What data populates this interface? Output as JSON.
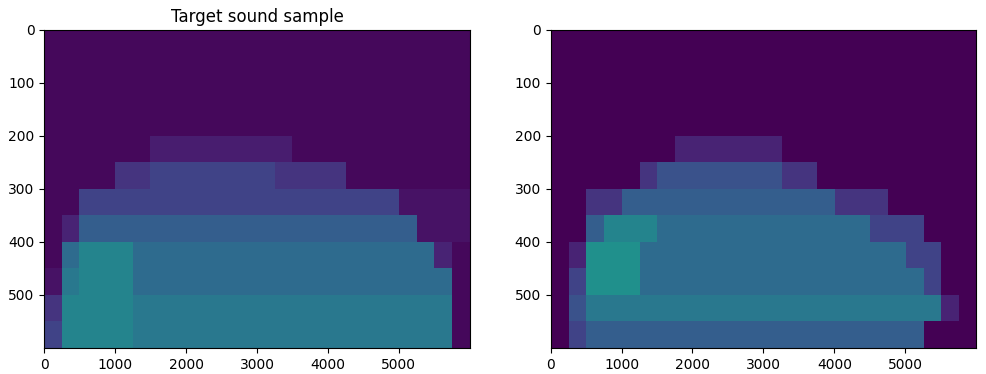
{
  "chart_data": [
    {
      "type": "heatmap",
      "title": "Target sound sample",
      "xlim": [
        0,
        6000
      ],
      "ylim": [
        600,
        0
      ],
      "xticks": [
        0,
        1000,
        2000,
        3000,
        4000,
        5000
      ],
      "yticks": [
        0,
        100,
        200,
        300,
        400,
        500
      ],
      "zlim": [
        0,
        1
      ],
      "color": "viridis",
      "cells": [
        [
          0.02,
          0.02,
          0.02,
          0.02,
          0.02,
          0.02,
          0.02,
          0.02,
          0.02,
          0.02,
          0.02,
          0.02,
          0.02,
          0.02,
          0.02,
          0.02,
          0.02,
          0.02,
          0.02,
          0.02,
          0.02,
          0.02,
          0.02,
          0.02
        ],
        [
          0.02,
          0.02,
          0.02,
          0.02,
          0.02,
          0.02,
          0.02,
          0.02,
          0.02,
          0.02,
          0.02,
          0.02,
          0.02,
          0.02,
          0.02,
          0.02,
          0.02,
          0.02,
          0.02,
          0.02,
          0.02,
          0.02,
          0.02,
          0.02
        ],
        [
          0.02,
          0.02,
          0.02,
          0.02,
          0.02,
          0.02,
          0.02,
          0.02,
          0.02,
          0.02,
          0.02,
          0.02,
          0.02,
          0.02,
          0.02,
          0.02,
          0.02,
          0.02,
          0.02,
          0.02,
          0.02,
          0.02,
          0.02,
          0.02
        ],
        [
          0.02,
          0.02,
          0.02,
          0.02,
          0.02,
          0.02,
          0.02,
          0.02,
          0.02,
          0.02,
          0.02,
          0.02,
          0.02,
          0.02,
          0.02,
          0.02,
          0.02,
          0.02,
          0.02,
          0.02,
          0.02,
          0.02,
          0.02,
          0.02
        ],
        [
          0.02,
          0.02,
          0.02,
          0.02,
          0.02,
          0.02,
          0.08,
          0.08,
          0.08,
          0.08,
          0.08,
          0.08,
          0.08,
          0.08,
          0.02,
          0.02,
          0.02,
          0.02,
          0.02,
          0.02,
          0.02,
          0.02,
          0.02,
          0.02
        ],
        [
          0.02,
          0.02,
          0.02,
          0.02,
          0.15,
          0.15,
          0.2,
          0.2,
          0.2,
          0.2,
          0.2,
          0.2,
          0.2,
          0.15,
          0.15,
          0.15,
          0.15,
          0.02,
          0.02,
          0.02,
          0.02,
          0.02,
          0.02,
          0.02
        ],
        [
          0.02,
          0.02,
          0.2,
          0.2,
          0.2,
          0.2,
          0.2,
          0.2,
          0.2,
          0.2,
          0.2,
          0.2,
          0.2,
          0.2,
          0.2,
          0.2,
          0.2,
          0.2,
          0.2,
          0.2,
          0.05,
          0.05,
          0.05,
          0.05
        ],
        [
          0.02,
          0.1,
          0.3,
          0.3,
          0.3,
          0.3,
          0.3,
          0.3,
          0.3,
          0.3,
          0.3,
          0.3,
          0.3,
          0.3,
          0.3,
          0.3,
          0.3,
          0.3,
          0.3,
          0.3,
          0.3,
          0.05,
          0.05,
          0.05
        ],
        [
          0.02,
          0.35,
          0.45,
          0.45,
          0.45,
          0.35,
          0.35,
          0.35,
          0.35,
          0.35,
          0.35,
          0.35,
          0.35,
          0.35,
          0.35,
          0.35,
          0.35,
          0.35,
          0.35,
          0.35,
          0.35,
          0.35,
          0.1,
          0.02
        ],
        [
          0.05,
          0.4,
          0.45,
          0.45,
          0.45,
          0.35,
          0.35,
          0.35,
          0.35,
          0.35,
          0.35,
          0.35,
          0.35,
          0.35,
          0.35,
          0.35,
          0.35,
          0.35,
          0.35,
          0.35,
          0.35,
          0.35,
          0.35,
          0.02
        ],
        [
          0.15,
          0.45,
          0.45,
          0.45,
          0.45,
          0.4,
          0.4,
          0.4,
          0.4,
          0.4,
          0.4,
          0.4,
          0.4,
          0.4,
          0.4,
          0.4,
          0.4,
          0.4,
          0.4,
          0.4,
          0.4,
          0.4,
          0.4,
          0.02
        ],
        [
          0.2,
          0.45,
          0.45,
          0.45,
          0.45,
          0.4,
          0.4,
          0.4,
          0.4,
          0.4,
          0.4,
          0.4,
          0.4,
          0.4,
          0.4,
          0.4,
          0.4,
          0.4,
          0.4,
          0.4,
          0.4,
          0.4,
          0.4,
          0.02
        ]
      ]
    },
    {
      "type": "heatmap",
      "xlim": [
        0,
        6000
      ],
      "ylim": [
        600,
        0
      ],
      "xticks": [
        0,
        1000,
        2000,
        3000,
        4000,
        5000
      ],
      "yticks": [
        0,
        100,
        200,
        300,
        400,
        500
      ],
      "zlim": [
        0,
        1
      ],
      "color": "viridis",
      "cells": [
        [
          0,
          0,
          0,
          0,
          0,
          0,
          0,
          0,
          0,
          0,
          0,
          0,
          0,
          0,
          0,
          0,
          0,
          0,
          0,
          0,
          0,
          0,
          0,
          0
        ],
        [
          0,
          0,
          0,
          0,
          0,
          0,
          0,
          0,
          0,
          0,
          0,
          0,
          0,
          0,
          0,
          0,
          0,
          0,
          0,
          0,
          0,
          0,
          0,
          0
        ],
        [
          0,
          0,
          0,
          0,
          0,
          0,
          0,
          0,
          0,
          0,
          0,
          0,
          0,
          0,
          0,
          0,
          0,
          0,
          0,
          0,
          0,
          0,
          0,
          0
        ],
        [
          0,
          0,
          0,
          0,
          0,
          0,
          0,
          0,
          0,
          0,
          0,
          0,
          0,
          0,
          0,
          0,
          0,
          0,
          0,
          0,
          0,
          0,
          0,
          0
        ],
        [
          0,
          0,
          0,
          0,
          0,
          0,
          0,
          0.1,
          0.1,
          0.1,
          0.1,
          0.1,
          0.1,
          0,
          0,
          0,
          0,
          0,
          0,
          0,
          0,
          0,
          0,
          0
        ],
        [
          0,
          0,
          0,
          0,
          0,
          0.15,
          0.25,
          0.25,
          0.25,
          0.25,
          0.25,
          0.25,
          0.25,
          0.15,
          0.15,
          0,
          0,
          0,
          0,
          0,
          0,
          0,
          0,
          0
        ],
        [
          0,
          0,
          0.15,
          0.15,
          0.3,
          0.3,
          0.3,
          0.3,
          0.3,
          0.3,
          0.3,
          0.3,
          0.3,
          0.3,
          0.3,
          0.3,
          0.15,
          0.15,
          0.15,
          0,
          0,
          0,
          0,
          0
        ],
        [
          0,
          0,
          0.3,
          0.45,
          0.45,
          0.45,
          0.35,
          0.35,
          0.35,
          0.35,
          0.35,
          0.35,
          0.35,
          0.35,
          0.35,
          0.35,
          0.35,
          0.35,
          0.2,
          0.2,
          0.2,
          0,
          0,
          0
        ],
        [
          0,
          0.1,
          0.5,
          0.5,
          0.5,
          0.35,
          0.35,
          0.35,
          0.35,
          0.35,
          0.35,
          0.35,
          0.35,
          0.35,
          0.35,
          0.35,
          0.35,
          0.35,
          0.35,
          0.35,
          0.2,
          0.2,
          0,
          0
        ],
        [
          0,
          0.2,
          0.5,
          0.5,
          0.5,
          0.35,
          0.35,
          0.35,
          0.35,
          0.35,
          0.35,
          0.35,
          0.35,
          0.35,
          0.35,
          0.35,
          0.35,
          0.35,
          0.35,
          0.35,
          0.35,
          0.2,
          0,
          0
        ],
        [
          0,
          0.25,
          0.4,
          0.4,
          0.4,
          0.4,
          0.4,
          0.4,
          0.4,
          0.4,
          0.4,
          0.4,
          0.4,
          0.4,
          0.4,
          0.4,
          0.4,
          0.4,
          0.4,
          0.4,
          0.4,
          0.4,
          0.1,
          0
        ],
        [
          0,
          0.2,
          0.3,
          0.3,
          0.3,
          0.3,
          0.3,
          0.3,
          0.3,
          0.3,
          0.3,
          0.3,
          0.3,
          0.3,
          0.3,
          0.3,
          0.3,
          0.3,
          0.3,
          0.3,
          0.3,
          0,
          0,
          0
        ]
      ]
    }
  ]
}
